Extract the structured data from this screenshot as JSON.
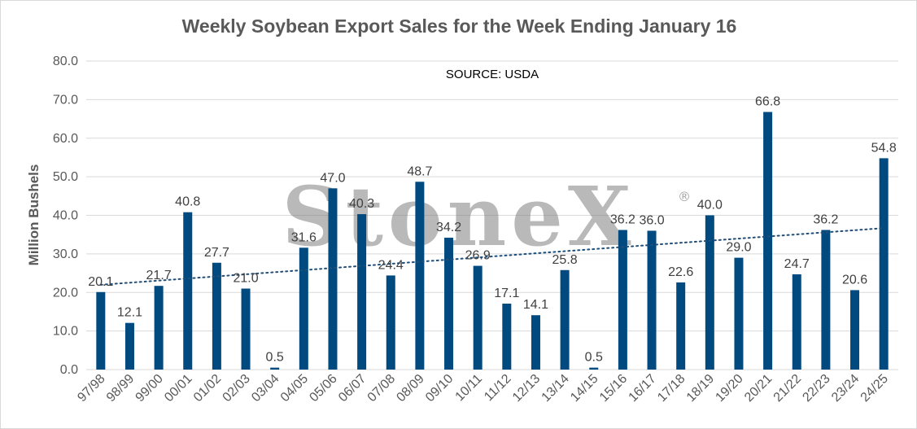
{
  "chart_data": {
    "type": "bar",
    "title": "Weekly Soybean Export Sales for the Week Ending January 16",
    "annotation": "SOURCE: USDA",
    "watermark": "StoneX",
    "watermark_mark": "®",
    "ylabel": "Million Bushels",
    "xlabel": "",
    "ylim": [
      0,
      80
    ],
    "yticks": [
      "0.0",
      "10.0",
      "20.0",
      "30.0",
      "40.0",
      "50.0",
      "60.0",
      "70.0",
      "80.0"
    ],
    "grid": true,
    "legend": "none",
    "bar_color": "#004a80",
    "trendline": {
      "type": "linear",
      "style": "dotted",
      "color": "#1f4e79"
    },
    "categories": [
      "97/98",
      "98/99",
      "99/00",
      "00/01",
      "01/02",
      "02/03",
      "03/04",
      "04/05",
      "05/06",
      "06/07",
      "07/08",
      "08/09",
      "09/10",
      "10/11",
      "11/12",
      "12/13",
      "13/14",
      "14/15",
      "15/16",
      "16/17",
      "17/18",
      "18/19",
      "19/20",
      "20/21",
      "21/22",
      "22/23",
      "23/24",
      "24/25"
    ],
    "values": [
      20.1,
      12.1,
      21.7,
      40.8,
      27.7,
      21.0,
      0.5,
      31.6,
      47.0,
      40.3,
      24.4,
      48.7,
      34.2,
      26.9,
      17.1,
      14.1,
      25.8,
      0.5,
      36.2,
      36.0,
      22.6,
      40.0,
      29.0,
      66.8,
      24.7,
      36.2,
      20.6,
      54.8
    ],
    "value_labels": [
      "20.1",
      "12.1",
      "21.7",
      "40.8",
      "27.7",
      "21.0",
      "0.5",
      "31.6",
      "47.0",
      "40.3",
      "24.4",
      "48.7",
      "34.2",
      "26.9",
      "17.1",
      "14.1",
      "25.8",
      "0.5",
      "36.2",
      "36.0",
      "22.6",
      "40.0",
      "29.0",
      "66.8",
      "24.7",
      "36.2",
      "20.6",
      "54.8"
    ]
  }
}
